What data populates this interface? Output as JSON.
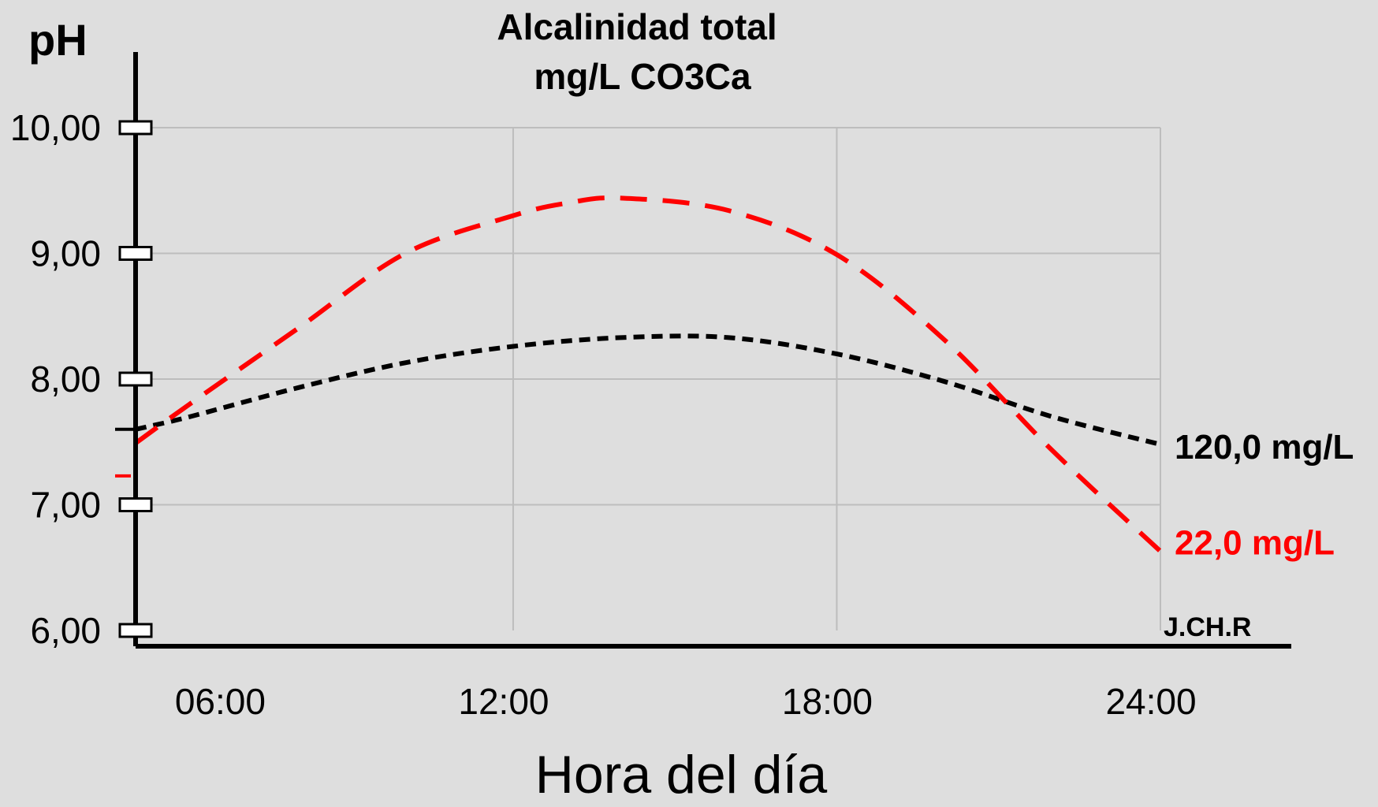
{
  "colors": {
    "background": "#dedede",
    "grid": "#bdbdbd",
    "axis": "#000000",
    "series_black": "#000000",
    "series_red": "#ff0000"
  },
  "chart_data": {
    "type": "line",
    "title": "Alcalinidad total",
    "subtitle": "mg/L CO3Ca",
    "ylabel": "pH",
    "xlabel": "Hora del día",
    "xlim": [
      5,
      24
    ],
    "ylim": [
      6,
      10
    ],
    "grid": true,
    "xticks": [
      {
        "value": 6,
        "label": "06:00"
      },
      {
        "value": 12,
        "label": "12:00"
      },
      {
        "value": 18,
        "label": "18:00"
      },
      {
        "value": 24,
        "label": "24:00"
      }
    ],
    "yticks": [
      {
        "value": 6,
        "label": "6,00"
      },
      {
        "value": 7,
        "label": "7,00"
      },
      {
        "value": 8,
        "label": "8,00"
      },
      {
        "value": 9,
        "label": "9,00"
      },
      {
        "value": 10,
        "label": "10,00"
      }
    ],
    "series": [
      {
        "name": "120,0 mg/L",
        "color": "#000000",
        "x": [
          5,
          6,
          8,
          10,
          12,
          14,
          16,
          18,
          20,
          22,
          24
        ],
        "y": [
          7.6,
          7.7,
          7.93,
          8.13,
          8.26,
          8.33,
          8.33,
          8.2,
          7.98,
          7.7,
          7.48
        ]
      },
      {
        "name": "22,0 mg/L",
        "color": "#ff0000",
        "x": [
          5,
          6,
          8,
          10,
          12,
          13,
          14,
          16,
          18,
          20,
          22,
          24
        ],
        "y": [
          7.49,
          7.8,
          8.4,
          9.0,
          9.3,
          9.4,
          9.44,
          9.34,
          8.99,
          8.31,
          7.43,
          6.63
        ]
      }
    ],
    "annotations": [
      "J.CH.R"
    ]
  }
}
